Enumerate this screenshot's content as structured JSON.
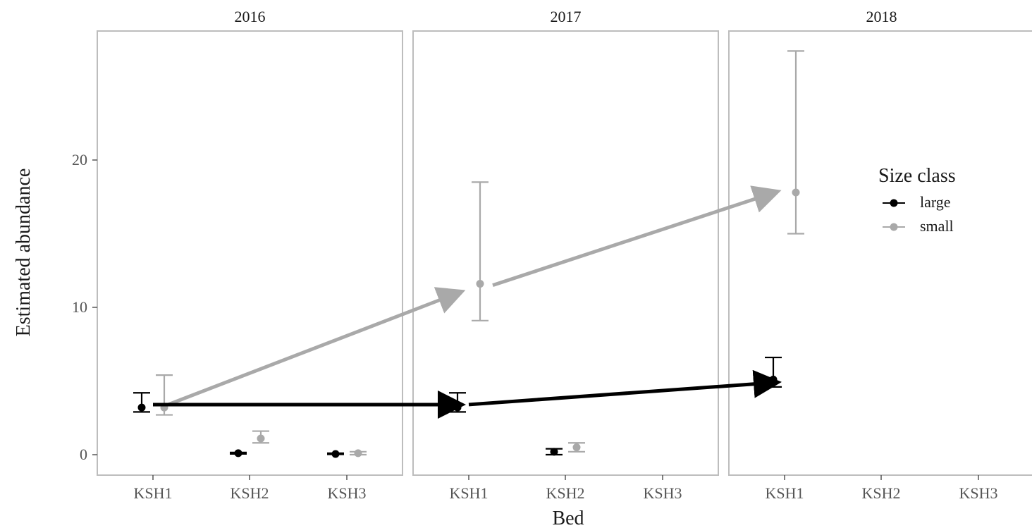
{
  "colors": {
    "large": "#000000",
    "small": "#a9a9a9",
    "frame": "#bdbdbd"
  },
  "chart_data": {
    "type": "scatter",
    "facets": [
      "2016",
      "2017",
      "2018"
    ],
    "categories": [
      "KSH1",
      "KSH2",
      "KSH3"
    ],
    "xlabel": "Bed",
    "ylabel": "Estimated abundance",
    "ylim": [
      -1.5,
      28.5
    ],
    "yticks": [
      0,
      10,
      20
    ],
    "grid": false,
    "legend": {
      "title": "Size class",
      "position": "right, inside 2018 panel"
    },
    "series": [
      {
        "name": "large",
        "color": "#000000",
        "points": [
          {
            "facet": "2016",
            "bed": "KSH1",
            "y": 3.2,
            "lo": 2.9,
            "hi": 4.2
          },
          {
            "facet": "2016",
            "bed": "KSH2",
            "y": 0.1,
            "lo": 0.05,
            "hi": 0.15
          },
          {
            "facet": "2016",
            "bed": "KSH3",
            "y": 0.05,
            "lo": 0.02,
            "hi": 0.1
          },
          {
            "facet": "2017",
            "bed": "KSH1",
            "y": 3.2,
            "lo": 2.9,
            "hi": 4.2
          },
          {
            "facet": "2017",
            "bed": "KSH2",
            "y": 0.2,
            "lo": 0.0,
            "hi": 0.4
          },
          {
            "facet": "2018",
            "bed": "KSH1",
            "y": 5.1,
            "lo": 4.6,
            "hi": 6.6
          }
        ]
      },
      {
        "name": "small",
        "color": "#a9a9a9",
        "points": [
          {
            "facet": "2016",
            "bed": "KSH1",
            "y": 3.2,
            "lo": 2.7,
            "hi": 5.4
          },
          {
            "facet": "2016",
            "bed": "KSH2",
            "y": 1.1,
            "lo": 0.8,
            "hi": 1.6
          },
          {
            "facet": "2016",
            "bed": "KSH3",
            "y": 0.1,
            "lo": 0.0,
            "hi": 0.2
          },
          {
            "facet": "2017",
            "bed": "KSH1",
            "y": 11.6,
            "lo": 9.1,
            "hi": 18.5
          },
          {
            "facet": "2017",
            "bed": "KSH2",
            "y": 0.5,
            "lo": 0.2,
            "hi": 0.8
          },
          {
            "facet": "2018",
            "bed": "KSH1",
            "y": 17.8,
            "lo": 15.0,
            "hi": 27.4
          }
        ]
      }
    ],
    "arrows": [
      {
        "color": "#a9a9a9",
        "from": {
          "facet": "2016",
          "bed": "KSH1",
          "y": 3.3
        },
        "to": {
          "facet": "2017",
          "bed": "KSH1",
          "y": 11.0
        }
      },
      {
        "color": "#a9a9a9",
        "from": {
          "facet": "2017",
          "bed": "KSH1",
          "y": 11.5
        },
        "to": {
          "facet": "2018",
          "bed": "KSH1",
          "y": 17.8
        }
      },
      {
        "color": "#000000",
        "from": {
          "facet": "2016",
          "bed": "KSH1",
          "y": 3.4
        },
        "to": {
          "facet": "2017",
          "bed": "KSH1",
          "y": 3.4
        }
      },
      {
        "color": "#000000",
        "from": {
          "facet": "2017",
          "bed": "KSH1",
          "y": 3.4
        },
        "to": {
          "facet": "2018",
          "bed": "KSH1",
          "y": 4.9
        }
      }
    ]
  }
}
